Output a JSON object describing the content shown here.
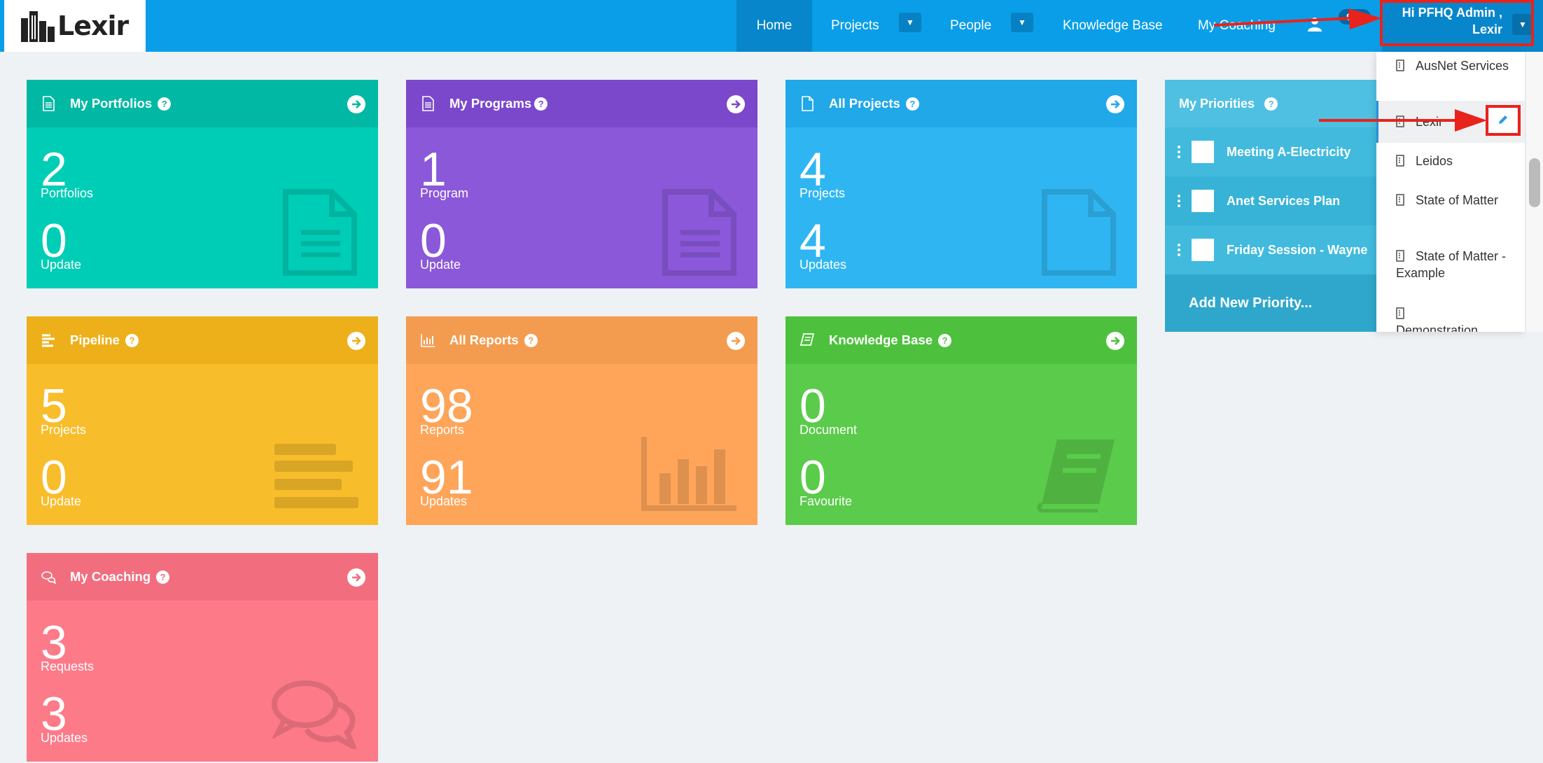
{
  "brand": {
    "name": "Lexir"
  },
  "nav": {
    "home": "Home",
    "projects": "Projects",
    "people": "People",
    "knowledge_base": "Knowledge Base",
    "my_coaching": "My Coaching",
    "badge": "9+1",
    "user_line1": "Hi PFHQ Admin ,",
    "user_line2": "Lexir"
  },
  "tiles": {
    "portfolios": {
      "title": "My Portfolios",
      "n1": "2",
      "l1": "Portfolios",
      "n2": "0",
      "l2": "Update",
      "icon": "document-icon"
    },
    "programs": {
      "title": "My Programs",
      "n1": "1",
      "l1": "Program",
      "n2": "0",
      "l2": "Update",
      "icon": "document-icon"
    },
    "projects": {
      "title": "All Projects",
      "n1": "4",
      "l1": "Projects",
      "n2": "4",
      "l2": "Updates",
      "icon": "file-icon"
    },
    "pipeline": {
      "title": "Pipeline",
      "n1": "5",
      "l1": "Projects",
      "n2": "0",
      "l2": "Update",
      "icon": "pipeline-icon"
    },
    "reports": {
      "title": "All Reports",
      "n1": "98",
      "l1": "Reports",
      "n2": "91",
      "l2": "Updates",
      "icon": "bar-chart-icon"
    },
    "knowledge": {
      "title": "Knowledge Base",
      "n1": "0",
      "l1": "Document",
      "n2": "0",
      "l2": "Favourite",
      "icon": "book-icon"
    },
    "coaching": {
      "title": "My Coaching",
      "n1": "3",
      "l1": "Requests",
      "n2": "3",
      "l2": "Updates",
      "icon": "chat-icon"
    }
  },
  "priorities": {
    "title": "My Priorities",
    "items": [
      "Meeting A-Electricity",
      "Anet Services Plan",
      "Friday Session - Wayne"
    ],
    "add": "Add New Priority..."
  },
  "dropdown": {
    "items": [
      "AusNet Services",
      "Lexir",
      "Leidos",
      "State of Matter",
      "State of Matter - Example",
      "Demonstration"
    ]
  },
  "colors": {
    "topbar": "#0a9ee8",
    "portfolios": "#00cdb6",
    "programs": "#8a58d9",
    "projects": "#2fb6f2",
    "pipeline": "#f8bd2b",
    "reports": "#fea55a",
    "knowledge": "#5acb4a",
    "coaching": "#fd7a89",
    "annotation": "#e8231c"
  }
}
